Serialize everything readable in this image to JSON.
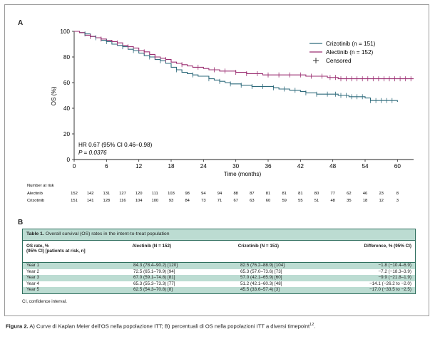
{
  "panel_a_label": "A",
  "panel_b_label": "B",
  "chart_data": {
    "type": "line",
    "xlabel": "Time (months)",
    "ylabel": "OS (%)",
    "xlim": [
      0,
      63
    ],
    "ylim": [
      0,
      100
    ],
    "xticks": [
      0,
      6,
      12,
      18,
      24,
      30,
      36,
      42,
      48,
      54,
      60
    ],
    "yticks": [
      0,
      20,
      40,
      60,
      80,
      100
    ],
    "legend": [
      "Crizotinib (n = 151)",
      "Alectinib (n = 152)",
      "Censored"
    ],
    "legend_position": "top-right",
    "annotation_hr": "HR 0.67 (95% CI 0.46–0.98)",
    "annotation_p": "P = 0.0376",
    "series": [
      {
        "name": "Crizotinib (n = 151)",
        "color": "#2f6b7c",
        "x": [
          0,
          1,
          2,
          3,
          4,
          5,
          6,
          7,
          8,
          9,
          10,
          11,
          12,
          13,
          14,
          15,
          16,
          17,
          18,
          19,
          20,
          21,
          22,
          23,
          24,
          25,
          26,
          27,
          28,
          29,
          30,
          31,
          32,
          33,
          34,
          35,
          36,
          37,
          38,
          39,
          40,
          41,
          42,
          43,
          44,
          45,
          46,
          47,
          48,
          49,
          50,
          51,
          52,
          53,
          54,
          55,
          56,
          57,
          58,
          59,
          60
        ],
        "y": [
          100,
          99,
          98,
          96,
          95,
          93,
          92,
          90,
          89,
          88,
          86,
          85,
          83,
          81,
          80,
          78,
          77,
          75,
          72,
          70,
          68,
          67,
          66,
          65,
          65,
          63,
          62,
          61,
          60,
          59,
          59,
          58,
          58,
          57,
          57,
          57,
          57,
          56,
          55,
          55,
          54,
          54,
          53,
          52,
          52,
          51,
          51,
          51,
          51,
          50,
          50,
          49,
          49,
          49,
          48,
          46,
          46,
          46,
          46,
          46,
          45
        ]
      },
      {
        "name": "Alectinib (n = 152)",
        "color": "#9b2f72",
        "x": [
          0,
          1,
          2,
          3,
          4,
          5,
          6,
          7,
          8,
          9,
          10,
          11,
          12,
          13,
          14,
          15,
          16,
          17,
          18,
          19,
          20,
          21,
          22,
          23,
          24,
          25,
          26,
          27,
          28,
          29,
          30,
          31,
          32,
          33,
          34,
          35,
          36,
          37,
          38,
          39,
          40,
          41,
          42,
          43,
          44,
          45,
          46,
          47,
          48,
          49,
          50,
          51,
          52,
          53,
          54,
          55,
          56,
          57,
          58,
          59,
          60,
          61,
          62,
          63
        ],
        "y": [
          100,
          99,
          97,
          96,
          95,
          94,
          93,
          92,
          91,
          89,
          88,
          87,
          85,
          84,
          82,
          80,
          79,
          78,
          76,
          75,
          74,
          73,
          72,
          72,
          71,
          70,
          70,
          69,
          69,
          69,
          68,
          68,
          67,
          67,
          67,
          66,
          66,
          66,
          66,
          66,
          66,
          66,
          66,
          65,
          65,
          65,
          65,
          64,
          64,
          63,
          63,
          63,
          63,
          63,
          63,
          63,
          63,
          63,
          63,
          63,
          63,
          63,
          63,
          63
        ]
      }
    ],
    "censored": {
      "crizotinib_x": [
        2,
        4,
        6,
        9,
        11,
        14,
        16,
        19,
        22,
        25,
        27,
        29,
        31,
        33,
        35,
        37,
        39,
        41,
        43,
        45,
        47,
        48.5,
        49.5,
        50.5,
        51.5,
        52.5,
        53.5,
        55,
        56,
        57,
        58,
        59
      ],
      "alectinib_x": [
        3,
        5,
        8,
        10,
        13,
        15,
        17,
        20,
        23,
        26,
        28,
        30,
        32,
        34,
        36,
        38,
        40,
        42,
        44,
        46,
        47.5,
        48.5,
        49.5,
        50.5,
        51.5,
        52.5,
        53.5,
        54.5,
        55.5,
        56.5,
        57.5,
        58.5,
        59.5,
        60.5,
        61.5,
        62.5
      ]
    }
  },
  "risk_table": {
    "title": "Number at risk",
    "rows": [
      {
        "name": "Alectinib",
        "values": [
          "152",
          "142",
          "131",
          "127",
          "120",
          "111",
          "103",
          "98",
          "94",
          "94",
          "88",
          "87",
          "81",
          "81",
          "81",
          "80",
          "77",
          "62",
          "46",
          "23",
          "8"
        ]
      },
      {
        "name": "Crizotinib",
        "values": [
          "151",
          "141",
          "128",
          "116",
          "104",
          "100",
          "93",
          "84",
          "73",
          "71",
          "67",
          "63",
          "60",
          "59",
          "55",
          "51",
          "48",
          "35",
          "18",
          "12",
          "3"
        ]
      }
    ]
  },
  "table": {
    "title_bold": "Table 1.",
    "title_rest": " Overall survival (OS) rates in the intent-to-treat population",
    "headers": [
      "OS rate, %\n(95% CI) [patients at risk, n]",
      "Alectinib (N = 152)",
      "Crizotinib (N = 151)",
      "Difference, % (95% CI)"
    ],
    "rows": [
      [
        "Year 1",
        "84.3 (78.4–90.2) [120]",
        "82.5 (76.2–88.9) [104]",
        "−1.8 (−10.4–6.9)"
      ],
      [
        "Year 2",
        "72.5 (65.1–79.9) [94]",
        "65.3 (57.0–73.6) [73]",
        "−7.2 (−18.3–3.9)"
      ],
      [
        "Year 3",
        "67.0 (59.1–74.8) [81]",
        "57.0 (42.1–65.9) [60]",
        "−9.9 (−21.8–1.9)"
      ],
      [
        "Year 4",
        "65.3 (55.3–73.3) [77]",
        "51.2 (42.1–60.3) [48]",
        "−14.1 (−26.2 to −2.0)"
      ],
      [
        "Year 5",
        "62.5 (54.3–70.8) [8]",
        "45.5 (33.6–57.4) [3]",
        "−17.0 (−33.5 to −2.5)"
      ]
    ],
    "footnote": "CI, confidence interval."
  },
  "caption": {
    "bold": "Figura 2.",
    "text": " A) Curve di Kaplan Meier dell’OS nella popolazione ITT; B) percentuali di OS nella popolazioni ITT a diversi timepoint",
    "sup": "12",
    "end": "."
  }
}
